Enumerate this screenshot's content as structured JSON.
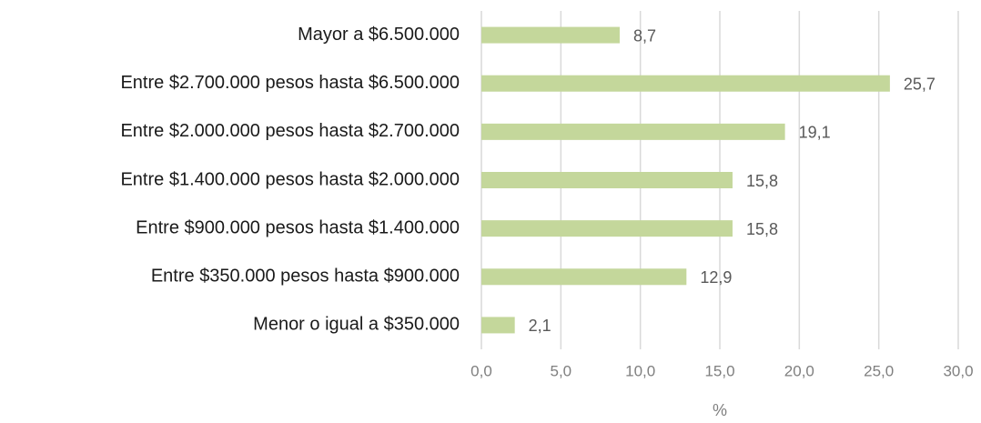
{
  "chart_data": {
    "type": "hbar",
    "categories": [
      "Mayor a $6.500.000",
      "Entre $2.700.000 pesos hasta $6.500.000",
      "Entre $2.000.000 pesos hasta $2.700.000",
      "Entre $1.400.000 pesos hasta $2.000.000",
      "Entre $900.000 pesos hasta $1.400.000",
      "Entre $350.000 pesos hasta $900.000",
      "Menor o igual a $350.000"
    ],
    "values": [
      8.7,
      25.7,
      19.1,
      15.8,
      15.8,
      12.9,
      2.1
    ],
    "value_labels": [
      "8,7",
      "25,7",
      "19,1",
      "15,8",
      "15,8",
      "12,9",
      "2,1"
    ],
    "color": "#c4d79b",
    "xlabel": "%",
    "xlim": [
      0,
      30
    ],
    "xticks": [
      {
        "value": 0,
        "label": "0,0"
      },
      {
        "value": 5,
        "label": "5,0"
      },
      {
        "value": 10,
        "label": "10,0"
      },
      {
        "value": 15,
        "label": "15,0"
      },
      {
        "value": 20,
        "label": "20,0"
      },
      {
        "value": 25,
        "label": "25,0"
      },
      {
        "value": 30,
        "label": "30,0"
      }
    ],
    "grid": true
  }
}
